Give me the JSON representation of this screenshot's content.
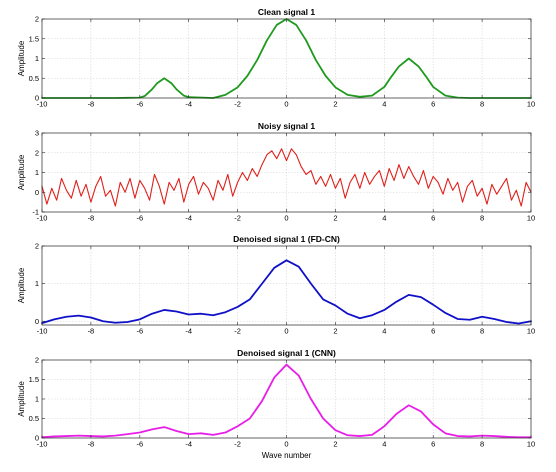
{
  "chart_data": [
    {
      "type": "line",
      "title": "Clean signal 1",
      "ylabel": "Amplitude",
      "xlabel": "",
      "xlim": [
        -10,
        10
      ],
      "ylim": [
        0,
        2
      ],
      "xticks": [
        -10,
        -8,
        -6,
        -4,
        -2,
        0,
        2,
        4,
        6,
        8,
        10
      ],
      "yticks": [
        0,
        0.5,
        1,
        1.5,
        2
      ],
      "ytick_labels": [
        "0",
        "0.5",
        "1",
        "1.5",
        "2"
      ],
      "grid": true,
      "series": [
        {
          "color": "#1f9a1f",
          "x": [
            -10,
            -9,
            -8,
            -7,
            -6,
            -5.8,
            -5.5,
            -5.3,
            -5,
            -4.7,
            -4.5,
            -4.2,
            -4,
            -3,
            -2.5,
            -2,
            -1.6,
            -1.2,
            -0.8,
            -0.4,
            0,
            0.4,
            0.8,
            1.2,
            1.6,
            2,
            2.5,
            3,
            3.5,
            4,
            4.3,
            4.6,
            5,
            5.4,
            5.7,
            6,
            6.5,
            7,
            7.5,
            8,
            9,
            10
          ],
          "y": [
            0,
            0,
            0,
            0,
            0.01,
            0.05,
            0.22,
            0.37,
            0.5,
            0.37,
            0.22,
            0.06,
            0.02,
            0,
            0.08,
            0.27,
            0.56,
            0.96,
            1.46,
            1.85,
            2.0,
            1.85,
            1.46,
            0.96,
            0.56,
            0.27,
            0.08,
            0.03,
            0.06,
            0.28,
            0.55,
            0.8,
            1.0,
            0.8,
            0.55,
            0.28,
            0.06,
            0.01,
            0,
            0,
            0,
            0
          ]
        }
      ]
    },
    {
      "type": "line",
      "title": "Noisy signal 1",
      "ylabel": "Amplitude",
      "xlabel": "",
      "xlim": [
        -10,
        10
      ],
      "ylim": [
        -1,
        3
      ],
      "xticks": [
        -10,
        -8,
        -6,
        -4,
        -2,
        0,
        2,
        4,
        6,
        8,
        10
      ],
      "yticks": [
        -1,
        0,
        1,
        2,
        3
      ],
      "ytick_labels": [
        "-1",
        "0",
        "1",
        "2",
        "3"
      ],
      "grid": true,
      "series": [
        {
          "color": "#e0201b",
          "x": [
            -10,
            -9.8,
            -9.6,
            -9.4,
            -9.2,
            -9,
            -8.8,
            -8.6,
            -8.4,
            -8.2,
            -8,
            -7.8,
            -7.6,
            -7.4,
            -7.2,
            -7,
            -6.8,
            -6.6,
            -6.4,
            -6.2,
            -6,
            -5.8,
            -5.6,
            -5.4,
            -5.2,
            -5,
            -4.8,
            -4.6,
            -4.4,
            -4.2,
            -4,
            -3.8,
            -3.6,
            -3.4,
            -3.2,
            -3,
            -2.8,
            -2.6,
            -2.4,
            -2.2,
            -2,
            -1.8,
            -1.6,
            -1.4,
            -1.2,
            -1,
            -0.8,
            -0.6,
            -0.4,
            -0.2,
            0,
            0.2,
            0.4,
            0.6,
            0.8,
            1,
            1.2,
            1.4,
            1.6,
            1.8,
            2,
            2.2,
            2.4,
            2.6,
            2.8,
            3,
            3.2,
            3.4,
            3.6,
            3.8,
            4,
            4.2,
            4.4,
            4.6,
            4.8,
            5,
            5.2,
            5.4,
            5.6,
            5.8,
            6,
            6.2,
            6.4,
            6.6,
            6.8,
            7,
            7.2,
            7.4,
            7.6,
            7.8,
            8,
            8.2,
            8.4,
            8.6,
            8.8,
            9,
            9.2,
            9.4,
            9.6,
            9.8,
            10
          ],
          "y": [
            0.3,
            -0.6,
            0.2,
            -0.4,
            0.7,
            0.1,
            -0.3,
            0.6,
            -0.2,
            0.4,
            -0.5,
            0.3,
            0.8,
            -0.2,
            0.1,
            -0.7,
            0.5,
            0.0,
            0.7,
            -0.3,
            0.6,
            0.2,
            -0.4,
            0.9,
            0.3,
            -0.6,
            0.5,
            0.1,
            0.7,
            -0.5,
            0.4,
            0.8,
            -0.1,
            0.5,
            0.2,
            -0.4,
            0.6,
            0.1,
            0.9,
            -0.2,
            0.5,
            1.0,
            0.6,
            1.2,
            0.8,
            1.4,
            1.9,
            2.1,
            1.7,
            2.2,
            1.6,
            2.2,
            1.9,
            1.3,
            0.9,
            1.1,
            0.4,
            0.8,
            0.3,
            0.9,
            0.2,
            0.7,
            -0.3,
            0.5,
            0.9,
            0.2,
            1.0,
            0.4,
            0.8,
            1.1,
            0.3,
            1.2,
            0.6,
            1.4,
            0.7,
            1.3,
            0.8,
            0.4,
            1.1,
            0.2,
            0.8,
            0.5,
            -0.1,
            0.7,
            0.1,
            0.5,
            -0.5,
            0.3,
            0.6,
            -0.2,
            0.2,
            -0.6,
            0.4,
            -0.1,
            0.3,
            0.7,
            -0.4,
            0.1,
            -0.7,
            0.5,
            0.0
          ]
        }
      ]
    },
    {
      "type": "line",
      "title": "Denoised signal 1 (FD-CN)",
      "ylabel": "Amplitude",
      "xlabel": "",
      "xlim": [
        -10,
        10
      ],
      "ylim": [
        -0.1,
        2
      ],
      "xticks": [
        -10,
        -8,
        -6,
        -4,
        -2,
        0,
        2,
        4,
        6,
        8,
        10
      ],
      "yticks": [
        0,
        1,
        2
      ],
      "ytick_labels": [
        "0",
        "1",
        "2"
      ],
      "grid": true,
      "series": [
        {
          "color": "#1010c8",
          "x": [
            -10,
            -9.5,
            -9,
            -8.5,
            -8,
            -7.5,
            -7,
            -6.5,
            -6,
            -5.5,
            -5,
            -4.5,
            -4,
            -3.5,
            -3,
            -2.5,
            -2,
            -1.5,
            -1,
            -0.5,
            0,
            0.5,
            1,
            1.5,
            2,
            2.5,
            3,
            3.5,
            4,
            4.5,
            5,
            5.5,
            6,
            6.5,
            7,
            7.5,
            8,
            8.5,
            9,
            9.5,
            10
          ],
          "y": [
            -0.05,
            0.05,
            0.12,
            0.15,
            0.1,
            0.0,
            -0.04,
            -0.02,
            0.05,
            0.2,
            0.3,
            0.26,
            0.18,
            0.2,
            0.16,
            0.24,
            0.38,
            0.58,
            1.0,
            1.42,
            1.62,
            1.45,
            1.0,
            0.58,
            0.42,
            0.2,
            0.08,
            0.16,
            0.3,
            0.52,
            0.7,
            0.64,
            0.44,
            0.22,
            0.06,
            0.04,
            0.12,
            0.06,
            -0.02,
            -0.06,
            0.0
          ]
        }
      ]
    },
    {
      "type": "line",
      "title": "Denoised signal 1 (CNN)",
      "ylabel": "Amplitude",
      "xlabel": "Wave number",
      "xlim": [
        -10,
        10
      ],
      "ylim": [
        0,
        2
      ],
      "xticks": [
        -10,
        -8,
        -6,
        -4,
        -2,
        0,
        2,
        4,
        6,
        8,
        10
      ],
      "yticks": [
        0,
        0.5,
        1,
        1.5,
        2
      ],
      "ytick_labels": [
        "0",
        "0.5",
        "1",
        "1.5",
        "2"
      ],
      "grid": true,
      "series": [
        {
          "color": "#e81ee8",
          "x": [
            -10,
            -9.5,
            -9,
            -8.5,
            -8,
            -7.5,
            -7,
            -6.5,
            -6,
            -5.5,
            -5,
            -4.5,
            -4,
            -3.5,
            -3,
            -2.5,
            -2,
            -1.5,
            -1,
            -0.5,
            0,
            0.5,
            1,
            1.5,
            2,
            2.5,
            3,
            3.5,
            4,
            4.5,
            5,
            5.5,
            6,
            6.5,
            7,
            7.5,
            8,
            8.5,
            9,
            9.5,
            10
          ],
          "y": [
            0.02,
            0.04,
            0.05,
            0.06,
            0.05,
            0.04,
            0.06,
            0.1,
            0.14,
            0.22,
            0.28,
            0.18,
            0.1,
            0.12,
            0.08,
            0.14,
            0.3,
            0.5,
            0.95,
            1.55,
            1.88,
            1.6,
            1.0,
            0.5,
            0.2,
            0.07,
            0.05,
            0.08,
            0.3,
            0.62,
            0.84,
            0.68,
            0.35,
            0.12,
            0.05,
            0.04,
            0.06,
            0.05,
            0.03,
            0.02,
            0.02
          ]
        }
      ]
    }
  ]
}
